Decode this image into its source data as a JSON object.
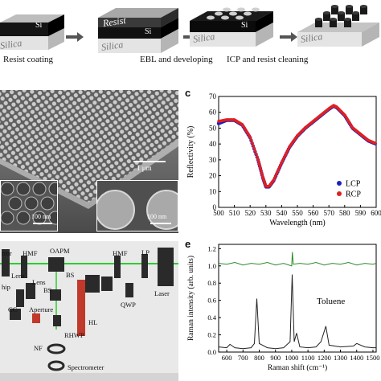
{
  "fabrication": {
    "steps": [
      "Resist coating",
      "EBL and developing",
      "ICP and resist cleaning"
    ],
    "block_labels": {
      "si": "Si",
      "silica": "Silica",
      "resist": "Resist"
    }
  },
  "sem": {
    "scale_main": "1 μm",
    "scale_inset1": "100 nm",
    "scale_inset2": "100 nm"
  },
  "panel_c": {
    "letter": "c",
    "chart_data": {
      "type": "line",
      "xlabel": "Wavelength (nm)",
      "ylabel": "Reflectivity (%)",
      "xlim": [
        500,
        600
      ],
      "ylim": [
        0,
        70
      ],
      "xticks": [
        500,
        510,
        520,
        530,
        540,
        550,
        560,
        570,
        580,
        590,
        600
      ],
      "yticks": [
        0,
        10,
        20,
        30,
        40,
        50,
        60,
        70
      ],
      "legend_position": "bottom-right",
      "series": [
        {
          "name": "LCP",
          "color": "#1f1fbf",
          "x": [
            500,
            505,
            510,
            515,
            520,
            525,
            528,
            530,
            532,
            535,
            540,
            545,
            550,
            555,
            560,
            565,
            570,
            573,
            575,
            580,
            585,
            590,
            595,
            600
          ],
          "y": [
            53,
            55,
            55,
            52,
            44,
            30,
            19,
            13,
            13,
            17,
            28,
            38,
            45,
            50,
            54,
            58,
            62,
            64,
            63,
            58,
            50,
            46,
            42,
            40
          ]
        },
        {
          "name": "RCP",
          "color": "#e02020",
          "x": [
            500,
            505,
            510,
            515,
            520,
            525,
            528,
            530,
            532,
            535,
            540,
            545,
            550,
            555,
            560,
            565,
            570,
            573,
            575,
            580,
            585,
            590,
            595,
            600
          ],
          "y": [
            54,
            55,
            55,
            52,
            44,
            30,
            19,
            13,
            13,
            17,
            28,
            38,
            45,
            50,
            54,
            58,
            62,
            64,
            63,
            58,
            50,
            46,
            42,
            40
          ]
        }
      ]
    }
  },
  "optics": {
    "labels": [
      "rror",
      "HMF",
      "OAPM",
      "HMF",
      "LP",
      "BS",
      "Lens",
      "Lens",
      "hip",
      "BS",
      "QWP",
      "Laser",
      "CC",
      "Aperture",
      "HL",
      "RHWP",
      "NF",
      "Spectrometer"
    ]
  },
  "panel_e": {
    "letter": "e",
    "annotation": "Toluene",
    "chart_data": {
      "type": "line",
      "xlabel": "Raman shift (cm⁻¹)",
      "ylabel": "Raman intensity (arb. units)",
      "xlim": [
        550,
        1520
      ],
      "ylim": [
        0,
        1.25
      ],
      "xticks": [
        600,
        700,
        800,
        900,
        1000,
        1100,
        1200,
        1300,
        1400,
        1500
      ],
      "yticks": [
        0.0,
        0.2,
        0.4,
        0.6,
        0.8,
        1.0,
        1.2
      ],
      "series": [
        {
          "color": "#2a8a2a",
          "x": [
            550,
            600,
            650,
            700,
            750,
            800,
            850,
            900,
            950,
            1000,
            1004,
            1010,
            1050,
            1100,
            1150,
            1200,
            1250,
            1300,
            1350,
            1400,
            1450,
            1500,
            1520
          ],
          "y": [
            1.03,
            1.02,
            1.04,
            1.01,
            1.03,
            1.02,
            1.04,
            1.01,
            1.03,
            1.0,
            1.16,
            1.02,
            1.03,
            1.02,
            1.04,
            1.01,
            1.03,
            1.02,
            1.04,
            1.01,
            1.03,
            1.02,
            1.03
          ]
        },
        {
          "color": "#222222",
          "x": [
            550,
            600,
            620,
            650,
            700,
            750,
            770,
            785,
            800,
            850,
            900,
            950,
            990,
            1003,
            1015,
            1030,
            1050,
            1100,
            1150,
            1180,
            1210,
            1230,
            1300,
            1380,
            1400,
            1450,
            1500,
            1520
          ],
          "y": [
            0.06,
            0.05,
            0.09,
            0.05,
            0.04,
            0.05,
            0.1,
            0.62,
            0.1,
            0.05,
            0.04,
            0.05,
            0.12,
            0.9,
            0.12,
            0.22,
            0.06,
            0.05,
            0.06,
            0.12,
            0.3,
            0.08,
            0.06,
            0.07,
            0.1,
            0.06,
            0.05,
            0.05
          ]
        }
      ]
    }
  }
}
